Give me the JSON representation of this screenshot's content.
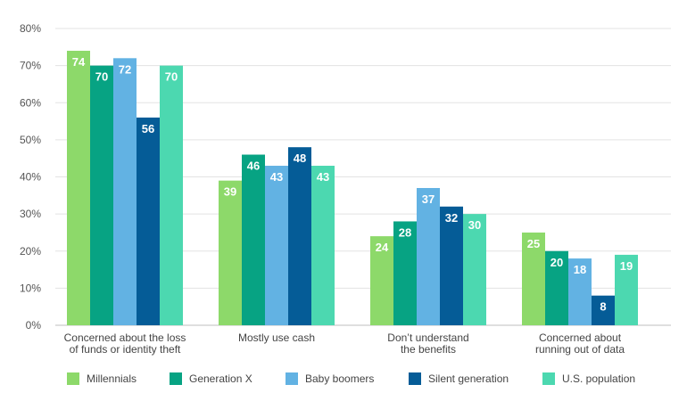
{
  "chart_data": {
    "type": "bar",
    "categories": [
      [
        "Concerned about the loss",
        "of funds or identity theft"
      ],
      [
        "Mostly use cash"
      ],
      [
        "Don’t understand",
        "the benefits"
      ],
      [
        "Concerned about",
        "running out of data"
      ]
    ],
    "series": [
      {
        "name": "Millennials",
        "color": "#8dd96a",
        "values": [
          74,
          39,
          24,
          25
        ]
      },
      {
        "name": "Generation X",
        "color": "#07a383",
        "values": [
          70,
          46,
          28,
          20
        ]
      },
      {
        "name": "Baby boomers",
        "color": "#62b2e3",
        "values": [
          72,
          43,
          37,
          18
        ]
      },
      {
        "name": "Silent generation",
        "color": "#055c97",
        "values": [
          56,
          48,
          32,
          8
        ]
      },
      {
        "name": "U.S. population",
        "color": "#4cd8b0",
        "values": [
          70,
          43,
          30,
          19
        ]
      }
    ],
    "ylim": [
      0,
      80
    ],
    "yticks": [
      0,
      10,
      20,
      30,
      40,
      50,
      60,
      70,
      80
    ],
    "ytick_suffix": "%",
    "grid": true,
    "legend_position": "bottom"
  }
}
